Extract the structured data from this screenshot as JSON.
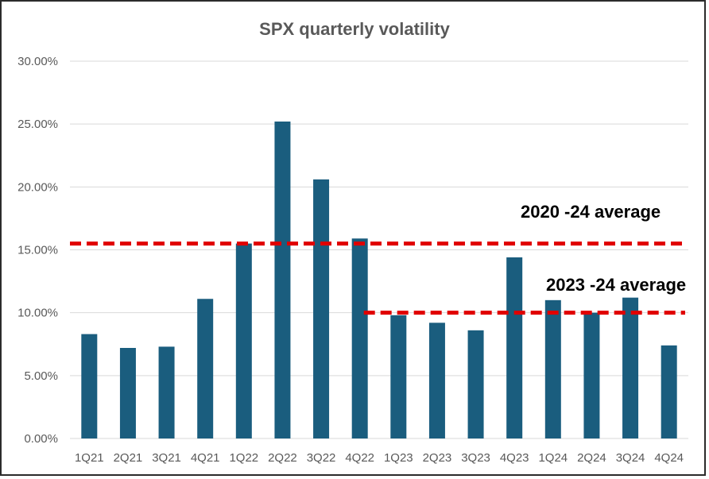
{
  "chart_data": {
    "type": "bar",
    "title": "SPX quarterly volatility",
    "xlabel": "",
    "ylabel": "",
    "categories": [
      "1Q21",
      "2Q21",
      "3Q21",
      "4Q21",
      "1Q22",
      "2Q22",
      "3Q22",
      "4Q22",
      "1Q23",
      "2Q23",
      "3Q23",
      "4Q23",
      "1Q24",
      "2Q24",
      "3Q24",
      "4Q24"
    ],
    "values": [
      8.3,
      7.2,
      7.3,
      11.1,
      15.5,
      25.2,
      20.6,
      15.9,
      9.8,
      9.2,
      8.6,
      14.4,
      11.0,
      10.0,
      11.2,
      7.4
    ],
    "ylim": [
      0,
      30
    ],
    "yticks": [
      "0.00%",
      "5.00%",
      "10.00%",
      "15.00%",
      "20.00%",
      "25.00%",
      "30.00%"
    ],
    "grid": true,
    "bar_color": "#1a5d7e",
    "reference_lines": [
      {
        "label": "2020 -24 average",
        "value": 15.5,
        "from_category": "1Q21",
        "to_category": "4Q24",
        "color": "#e00000"
      },
      {
        "label": "2023 -24 average",
        "value": 10.0,
        "from_category": "4Q22",
        "to_category": "4Q24",
        "color": "#e00000"
      }
    ]
  }
}
